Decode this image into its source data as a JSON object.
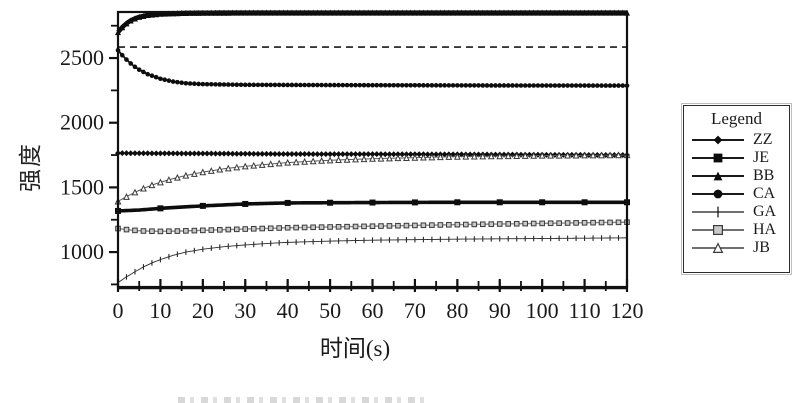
{
  "chart_data": {
    "type": "line",
    "title": "",
    "xlabel": "时间(s)",
    "ylabel": "强度",
    "legend_title": "Legend",
    "legend_position": "right-outside",
    "grid": false,
    "xlim": [
      0,
      120
    ],
    "ylim": [
      730,
      2856
    ],
    "xticks_major": [
      0,
      10,
      20,
      30,
      40,
      50,
      60,
      70,
      80,
      90,
      100,
      110,
      120
    ],
    "xtick_minor_step": 5,
    "yticks_labeled": [
      1000,
      1500,
      2000,
      2500
    ],
    "yticks_minor": [
      750,
      1250,
      1750,
      2250,
      2750
    ],
    "reference_line": {
      "y": 2585,
      "style": "dashed",
      "color": "#1a1a1a"
    },
    "axis_color": "#111111",
    "series": [
      {
        "name": "ZZ",
        "marker": "diamond",
        "color": "#0d0d0d",
        "points": [
          [
            0,
            1765
          ],
          [
            10,
            1763
          ],
          [
            20,
            1762
          ],
          [
            30,
            1760
          ],
          [
            40,
            1758
          ],
          [
            60,
            1757
          ],
          [
            80,
            1755
          ],
          [
            100,
            1752
          ],
          [
            120,
            1750
          ]
        ]
      },
      {
        "name": "JE",
        "marker": "square",
        "color": "#0d0d0d",
        "points": [
          [
            0,
            1318
          ],
          [
            5,
            1325
          ],
          [
            10,
            1338
          ],
          [
            15,
            1348
          ],
          [
            20,
            1357
          ],
          [
            30,
            1372
          ],
          [
            40,
            1380
          ],
          [
            60,
            1383
          ],
          [
            80,
            1385
          ],
          [
            100,
            1385
          ],
          [
            120,
            1385
          ]
        ]
      },
      {
        "name": "BB",
        "marker": "triangle",
        "color": "#0d0d0d",
        "points": [
          [
            0,
            2700
          ],
          [
            1,
            2738
          ],
          [
            2,
            2768
          ],
          [
            3,
            2790
          ],
          [
            4,
            2806
          ],
          [
            5,
            2818
          ],
          [
            7,
            2833
          ],
          [
            10,
            2842
          ],
          [
            15,
            2848
          ],
          [
            20,
            2850
          ],
          [
            30,
            2851
          ],
          [
            60,
            2851
          ],
          [
            120,
            2851
          ]
        ]
      },
      {
        "name": "CA",
        "marker": "circle",
        "color": "#0d0d0d",
        "points": [
          [
            0,
            2560
          ],
          [
            1,
            2522
          ],
          [
            2,
            2488
          ],
          [
            3,
            2458
          ],
          [
            4,
            2432
          ],
          [
            5,
            2410
          ],
          [
            7,
            2375
          ],
          [
            10,
            2340
          ],
          [
            13,
            2318
          ],
          [
            16,
            2305
          ],
          [
            20,
            2298
          ],
          [
            30,
            2293
          ],
          [
            60,
            2290
          ],
          [
            90,
            2288
          ],
          [
            120,
            2287
          ]
        ]
      },
      {
        "name": "GA",
        "marker": "vtick",
        "color": "#2a2a2a",
        "points": [
          [
            0,
            765
          ],
          [
            2,
            808
          ],
          [
            4,
            848
          ],
          [
            6,
            885
          ],
          [
            8,
            916
          ],
          [
            10,
            942
          ],
          [
            13,
            975
          ],
          [
            16,
            1000
          ],
          [
            20,
            1022
          ],
          [
            25,
            1042
          ],
          [
            30,
            1055
          ],
          [
            35,
            1066
          ],
          [
            40,
            1075
          ],
          [
            50,
            1085
          ],
          [
            60,
            1092
          ],
          [
            80,
            1100
          ],
          [
            100,
            1105
          ],
          [
            120,
            1110
          ]
        ]
      },
      {
        "name": "HA",
        "marker": "square-open",
        "color": "#8a8a8a",
        "points": [
          [
            0,
            1182
          ],
          [
            3,
            1170
          ],
          [
            6,
            1163
          ],
          [
            10,
            1160
          ],
          [
            15,
            1163
          ],
          [
            20,
            1168
          ],
          [
            30,
            1178
          ],
          [
            40,
            1188
          ],
          [
            50,
            1194
          ],
          [
            60,
            1200
          ],
          [
            80,
            1212
          ],
          [
            100,
            1222
          ],
          [
            120,
            1231
          ]
        ]
      },
      {
        "name": "JB",
        "marker": "triangle-open",
        "color": "#5a5a5a",
        "points": [
          [
            0,
            1392
          ],
          [
            2,
            1428
          ],
          [
            4,
            1462
          ],
          [
            6,
            1492
          ],
          [
            8,
            1518
          ],
          [
            10,
            1540
          ],
          [
            13,
            1568
          ],
          [
            16,
            1592
          ],
          [
            20,
            1618
          ],
          [
            25,
            1644
          ],
          [
            30,
            1663
          ],
          [
            35,
            1678
          ],
          [
            40,
            1692
          ],
          [
            50,
            1710
          ],
          [
            60,
            1722
          ],
          [
            80,
            1738
          ],
          [
            100,
            1746
          ],
          [
            120,
            1750
          ]
        ]
      }
    ]
  }
}
